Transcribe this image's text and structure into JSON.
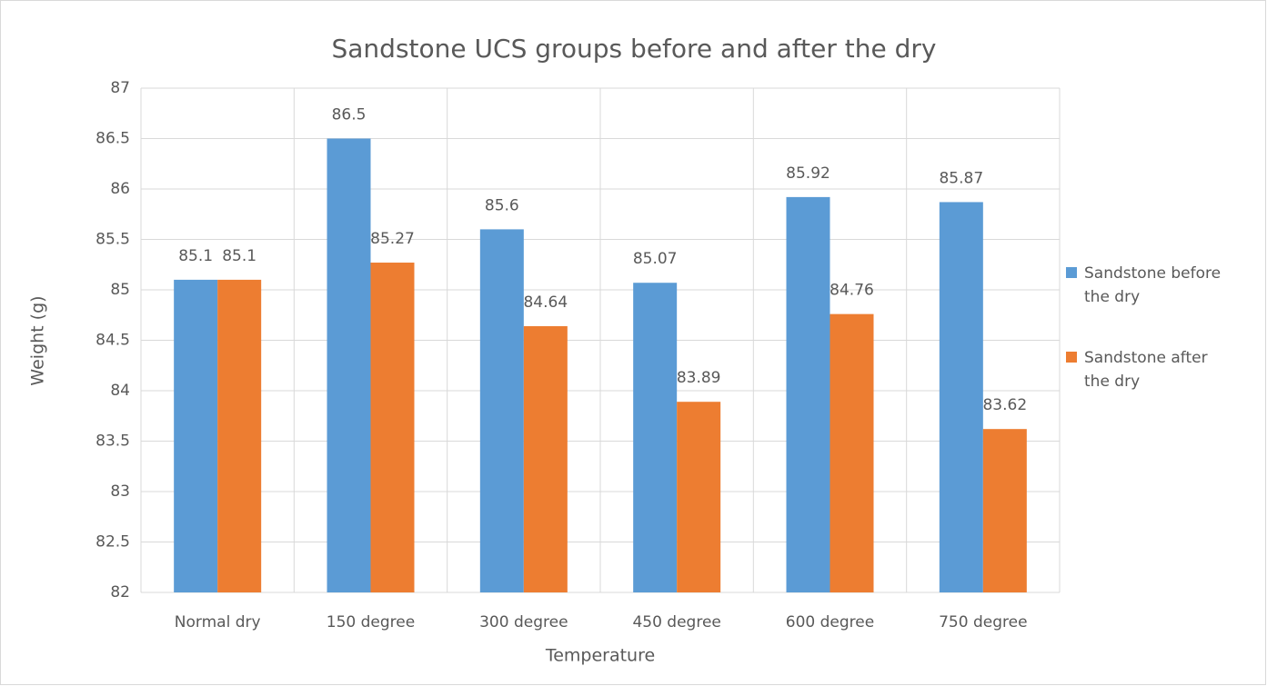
{
  "chart_data": {
    "type": "bar",
    "title": "Sandstone UCS groups before and after the dry",
    "x_label": "Temperature",
    "y_label": "Weight (g)",
    "categories": [
      "Normal dry",
      "150 degree",
      "300 degree",
      "450 degree",
      "600 degree",
      "750 degree"
    ],
    "series": [
      {
        "name": "Sandstone before the dry",
        "color": "#5b9bd5",
        "values": [
          85.1,
          86.5,
          85.6,
          85.07,
          85.92,
          85.87
        ]
      },
      {
        "name": "Sandstone after the dry",
        "color": "#ed7d31",
        "values": [
          85.1,
          85.27,
          84.64,
          83.89,
          84.76,
          83.62
        ]
      }
    ],
    "ylim": [
      82,
      87
    ],
    "yticks": [
      82,
      82.5,
      83,
      83.5,
      84,
      84.5,
      85,
      85.5,
      86,
      86.5,
      87
    ],
    "grid": true,
    "legend": "right"
  }
}
